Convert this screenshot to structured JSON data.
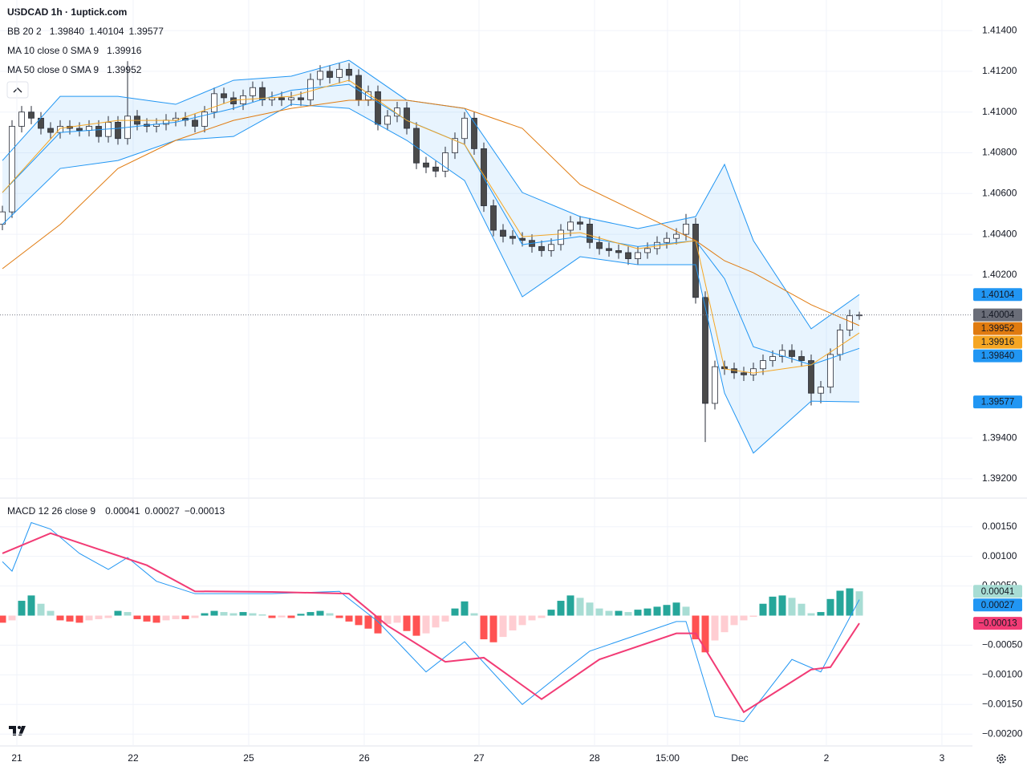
{
  "header": {
    "title": "USDCAD 1h · 1uptick.com"
  },
  "chart_data": [
    {
      "type": "candlestick",
      "xlim": [
        -0.25,
        100.75
      ],
      "xticks": [
        {
          "value": 1.5,
          "label": "21"
        },
        {
          "value": 13.58,
          "label": "22"
        },
        {
          "value": 25.58,
          "label": "25"
        },
        {
          "value": 37.58,
          "label": "26"
        },
        {
          "value": 49.5,
          "label": "27"
        },
        {
          "value": 61.5,
          "label": "28"
        },
        {
          "value": 69.08,
          "label": "15:00"
        },
        {
          "value": 76.58,
          "label": "Dec"
        },
        {
          "value": 85.58,
          "label": "2"
        },
        {
          "value": 97.58,
          "label": "3"
        }
      ],
      "ylim": [
        1.39109,
        1.4155
      ],
      "yticks": [
        {
          "value": 1.414,
          "label": "1.41400"
        },
        {
          "value": 1.412,
          "label": "1.41200"
        },
        {
          "value": 1.41,
          "label": "1.41000"
        },
        {
          "value": 1.408,
          "label": "1.40800"
        },
        {
          "value": 1.406,
          "label": "1.40600"
        },
        {
          "value": 1.404,
          "label": "1.40400"
        },
        {
          "value": 1.402,
          "label": "1.40200"
        },
        {
          "value": 1.394,
          "label": "1.39400"
        },
        {
          "value": 1.392,
          "label": "1.39200"
        }
      ],
      "grid": true,
      "colors": {
        "up": "#ffffff",
        "down": "#4a4a4a",
        "wick": "#2a2e39",
        "last_price": "#6a6d78"
      },
      "open": [
        1.4045,
        1.4051,
        1.4093,
        1.41,
        1.4097,
        1.4092,
        1.409,
        1.4093,
        1.4092,
        1.4091,
        1.4093,
        1.4088,
        1.4095,
        1.4087,
        1.4098,
        1.4094,
        1.4093,
        1.4094,
        1.4096,
        1.4097,
        1.4096,
        1.4093,
        1.41,
        1.4109,
        1.4107,
        1.4104,
        1.4108,
        1.4112,
        1.4106,
        1.4107,
        1.4106,
        1.4107,
        1.4106,
        1.4116,
        1.412,
        1.4117,
        1.4121,
        1.4118,
        1.4106,
        1.411,
        1.4094,
        1.4098,
        1.4102,
        1.4092,
        1.4075,
        1.4073,
        1.4071,
        1.408,
        1.4087,
        1.4097,
        1.4082,
        1.4054,
        1.4042,
        1.4039,
        1.4038,
        1.4037,
        1.4034,
        1.4032,
        1.4035,
        1.4042,
        1.4046,
        1.4045,
        1.4036,
        1.4033,
        1.4032,
        1.4031,
        1.4028,
        1.4031,
        1.4033,
        1.4036,
        1.4038,
        1.404,
        1.4045,
        1.4009,
        1.3957,
        1.3975,
        1.3974,
        1.3972,
        1.3971,
        1.3974,
        1.3978,
        1.398,
        1.3983,
        1.398,
        1.3978,
        1.3962,
        1.3965,
        1.3981,
        1.3993,
        1.4
      ],
      "high": [
        1.4054,
        1.4096,
        1.4103,
        1.4103,
        1.41,
        1.4095,
        1.4096,
        1.4096,
        1.4095,
        1.4096,
        1.4096,
        1.4098,
        1.4098,
        1.4125,
        1.4101,
        1.4097,
        1.4097,
        1.4099,
        1.41,
        1.41,
        1.4099,
        1.4103,
        1.4112,
        1.4112,
        1.411,
        1.4111,
        1.4115,
        1.4115,
        1.411,
        1.411,
        1.411,
        1.411,
        1.4119,
        1.4123,
        1.4123,
        1.4124,
        1.4124,
        1.4121,
        1.4113,
        1.4113,
        1.4101,
        1.4105,
        1.4105,
        1.4095,
        1.4078,
        1.4076,
        1.4083,
        1.409,
        1.41,
        1.41,
        1.4085,
        1.4057,
        1.4045,
        1.4042,
        1.4041,
        1.404,
        1.4037,
        1.4038,
        1.4045,
        1.4049,
        1.4049,
        1.4048,
        1.4039,
        1.4036,
        1.4035,
        1.4034,
        1.4034,
        1.4036,
        1.4039,
        1.4041,
        1.4043,
        1.405,
        1.4048,
        1.4012,
        1.3978,
        1.3978,
        1.3977,
        1.3975,
        1.3977,
        1.3981,
        1.3983,
        1.3986,
        1.3986,
        1.3983,
        1.3981,
        1.3968,
        1.3984,
        1.3996,
        1.4003,
        1.4002
      ],
      "low": [
        1.4042,
        1.4048,
        1.409,
        1.4094,
        1.4089,
        1.4087,
        1.4087,
        1.4089,
        1.4088,
        1.4088,
        1.4085,
        1.4085,
        1.4084,
        1.4084,
        1.4091,
        1.409,
        1.409,
        1.4091,
        1.4093,
        1.4093,
        1.409,
        1.409,
        1.4097,
        1.4104,
        1.4101,
        1.4101,
        1.4105,
        1.4103,
        1.4103,
        1.4103,
        1.4103,
        1.4103,
        1.4103,
        1.4113,
        1.4114,
        1.4114,
        1.4115,
        1.4103,
        1.4103,
        1.4091,
        1.4091,
        1.4095,
        1.4089,
        1.4072,
        1.407,
        1.4068,
        1.4068,
        1.4077,
        1.4084,
        1.4079,
        1.4051,
        1.4039,
        1.4036,
        1.4035,
        1.4034,
        1.4031,
        1.4029,
        1.4029,
        1.4032,
        1.4039,
        1.4042,
        1.4033,
        1.403,
        1.4029,
        1.4028,
        1.4025,
        1.4025,
        1.4028,
        1.403,
        1.4033,
        1.4035,
        1.4037,
        1.4006,
        1.3938,
        1.3954,
        1.3971,
        1.3969,
        1.3968,
        1.3968,
        1.3971,
        1.3975,
        1.3977,
        1.3977,
        1.3975,
        1.3956,
        1.3957,
        1.3962,
        1.3978,
        1.399,
        1.3998
      ],
      "close": [
        1.4051,
        1.4093,
        1.41,
        1.4097,
        1.4092,
        1.409,
        1.4093,
        1.4092,
        1.4091,
        1.4093,
        1.4088,
        1.4095,
        1.4087,
        1.4098,
        1.4094,
        1.4093,
        1.4094,
        1.4096,
        1.4097,
        1.4096,
        1.4093,
        1.41,
        1.4109,
        1.4107,
        1.4104,
        1.4108,
        1.4112,
        1.4106,
        1.4107,
        1.4106,
        1.4107,
        1.4106,
        1.4116,
        1.412,
        1.4117,
        1.4121,
        1.4118,
        1.4106,
        1.411,
        1.4094,
        1.4098,
        1.4102,
        1.4092,
        1.4075,
        1.4073,
        1.4071,
        1.408,
        1.4087,
        1.4097,
        1.4082,
        1.4054,
        1.4042,
        1.4039,
        1.4038,
        1.4037,
        1.4034,
        1.4032,
        1.4035,
        1.4042,
        1.4046,
        1.4045,
        1.4036,
        1.4033,
        1.4032,
        1.4031,
        1.4028,
        1.4031,
        1.4033,
        1.4036,
        1.4038,
        1.404,
        1.4045,
        1.4009,
        1.3957,
        1.3975,
        1.3974,
        1.3972,
        1.3971,
        1.3974,
        1.3978,
        1.398,
        1.3983,
        1.398,
        1.3978,
        1.3962,
        1.3965,
        1.3981,
        1.3993,
        1.4,
        1.40004
      ],
      "overlays": [
        {
          "legend": "BB 20 2",
          "color": "#2196f3",
          "band_fill": "rgba(33,150,243,0.1)",
          "lines": [
            {
              "x": [
                0,
                6,
                12,
                18,
                24,
                30,
                36,
                42,
                48,
                54,
                60,
                66,
                72,
                75,
                78,
                84,
                89
              ],
              "values": [
                1.40605,
                1.409,
                1.4092,
                1.4095,
                1.41018,
                1.41107,
                1.41136,
                1.4096,
                1.40841,
                1.40349,
                1.40389,
                1.4034,
                1.40369,
                1.40182,
                1.39848,
                1.39759,
                1.3984
              ],
              "last_label": "1.39840"
            },
            {
              "x": [
                0,
                6,
                12,
                18,
                24,
                30,
                36,
                42,
                48,
                54,
                60,
                66,
                72,
                75,
                78,
                84,
                89
              ],
              "values": [
                1.40762,
                1.41077,
                1.41077,
                1.41038,
                1.41156,
                1.41176,
                1.41254,
                1.41058,
                1.41018,
                1.40605,
                1.40487,
                1.40428,
                1.40487,
                1.40743,
                1.40369,
                1.39936,
                1.40104
              ]
            },
            {
              "x": [
                0,
                6,
                12,
                18,
                24,
                30,
                36,
                42,
                48,
                54,
                60,
                66,
                72,
                75,
                78,
                84,
                89
              ],
              "values": [
                1.40448,
                1.40723,
                1.40762,
                1.40861,
                1.4088,
                1.41038,
                1.41018,
                1.40861,
                1.40664,
                1.40093,
                1.4029,
                1.40251,
                1.40251,
                1.39621,
                1.39326,
                1.39581,
                1.39577
              ]
            }
          ]
        },
        {
          "legend": "MA 10 close 0 SMA 9",
          "color": "#f5a623",
          "lines": [
            {
              "x": [
                0,
                6,
                12,
                18,
                24,
                30,
                36,
                42,
                48,
                54,
                60,
                66,
                72,
                75,
                78,
                84,
                89
              ],
              "values": [
                1.40605,
                1.4092,
                1.40959,
                1.40959,
                1.41058,
                1.41077,
                1.41156,
                1.40959,
                1.40841,
                1.40388,
                1.40408,
                1.40329,
                1.40369,
                1.39739,
                1.39719,
                1.39759,
                1.39916
              ]
            }
          ]
        },
        {
          "legend": "MA 50 close 0 SMA 9",
          "color": "#e07b10",
          "lines": [
            {
              "x": [
                0,
                6,
                12,
                18,
                24,
                30,
                36,
                42,
                48,
                54,
                60,
                66,
                72,
                75,
                78,
                84,
                89
              ],
              "values": [
                1.40231,
                1.40448,
                1.40723,
                1.40861,
                1.40959,
                1.41018,
                1.41058,
                1.41058,
                1.41018,
                1.4092,
                1.40644,
                1.40507,
                1.40369,
                1.4027,
                1.40211,
                1.40054,
                1.39952
              ]
            }
          ]
        }
      ]
    },
    {
      "type": "macd",
      "legend": "MACD 12 26 close 9",
      "ylim": [
        -0.0022,
        0.00197
      ],
      "yticks": [
        {
          "value": 0.0015,
          "label": "0.00150"
        },
        {
          "value": 0.001,
          "label": "0.00100"
        },
        {
          "value": 0.0005,
          "label": "0.00050"
        },
        {
          "value": -0.0005,
          "label": "−0.00050"
        },
        {
          "value": -0.001,
          "label": "−0.00100"
        },
        {
          "value": -0.0015,
          "label": "−0.00150"
        },
        {
          "value": -0.002,
          "label": "−0.00200"
        }
      ],
      "histogram": {
        "colors": {
          "up_strong": "#26a69a",
          "up_weak": "#a8ddd4",
          "down_strong": "#ff5252",
          "down_weak": "#ffcdd2"
        },
        "values": [
          -0.00012,
          -8e-05,
          0.00025,
          0.00034,
          0.0002,
          8e-05,
          -8e-05,
          -0.0001,
          -0.00012,
          -8e-05,
          -6e-05,
          -4e-05,
          8e-05,
          6e-05,
          -6e-05,
          -0.0001,
          -0.00012,
          -8e-05,
          -6e-05,
          -6e-05,
          -4e-05,
          4e-05,
          8e-05,
          6e-05,
          4e-05,
          6e-05,
          4e-05,
          2e-05,
          -4e-05,
          -3e-05,
          -4e-05,
          3e-05,
          6e-05,
          8e-05,
          4e-05,
          -4e-05,
          -0.0001,
          -0.00016,
          -0.00022,
          -0.0003,
          -0.00014,
          -0.00012,
          -0.00026,
          -0.00034,
          -0.0003,
          -0.0002,
          -0.0001,
          0.00012,
          0.00024,
          4e-05,
          -0.0004,
          -0.00045,
          -0.00036,
          -0.00025,
          -0.00016,
          -8e-05,
          -4e-05,
          0.0001,
          0.00025,
          0.00034,
          0.0003,
          0.00022,
          0.00012,
          8e-05,
          8e-05,
          6e-05,
          0.0001,
          0.00012,
          0.00015,
          0.00018,
          0.00022,
          0.00015,
          -0.0004,
          -0.00062,
          -0.00042,
          -0.00028,
          -0.00016,
          -8e-05,
          -2e-05,
          0.0002,
          0.00032,
          0.00034,
          0.0003,
          0.0002,
          4e-05,
          6e-05,
          0.00028,
          0.00042,
          0.00046,
          0.00041
        ]
      },
      "lines": [
        {
          "color": "#2196f3",
          "x": [
            0,
            1,
            3,
            5,
            8,
            11,
            13,
            16,
            20,
            28,
            35,
            39,
            44,
            48,
            54,
            58,
            61,
            70,
            71,
            74,
            77,
            82,
            85,
            89
          ],
          "values": [
            0.00091,
            0.00075,
            0.00157,
            0.00146,
            0.00105,
            0.00078,
            0.00098,
            0.00058,
            0.00037,
            0.00037,
            0.00041,
            -0.0001,
            -0.00095,
            -0.00044,
            -0.0015,
            -0.00098,
            -0.0006,
            -0.0001,
            -0.0001,
            -0.0017,
            -0.00179,
            -0.00074,
            -0.00095,
            0.00027
          ]
        },
        {
          "color": "#f23b75",
          "x": [
            0,
            5,
            10,
            15,
            20,
            28,
            36,
            40,
            46,
            50,
            56,
            62,
            70,
            72,
            77,
            84,
            86,
            89
          ],
          "values": [
            0.00105,
            0.00139,
            0.00112,
            0.00085,
            0.00041,
            0.0004,
            0.00037,
            -0.00017,
            -0.00078,
            -0.00071,
            -0.00141,
            -0.00074,
            -0.0003,
            -0.0003,
            -0.00163,
            -0.00091,
            -0.00087,
            -0.00013
          ],
          "last_label": "−0.00013"
        }
      ]
    }
  ]
}
